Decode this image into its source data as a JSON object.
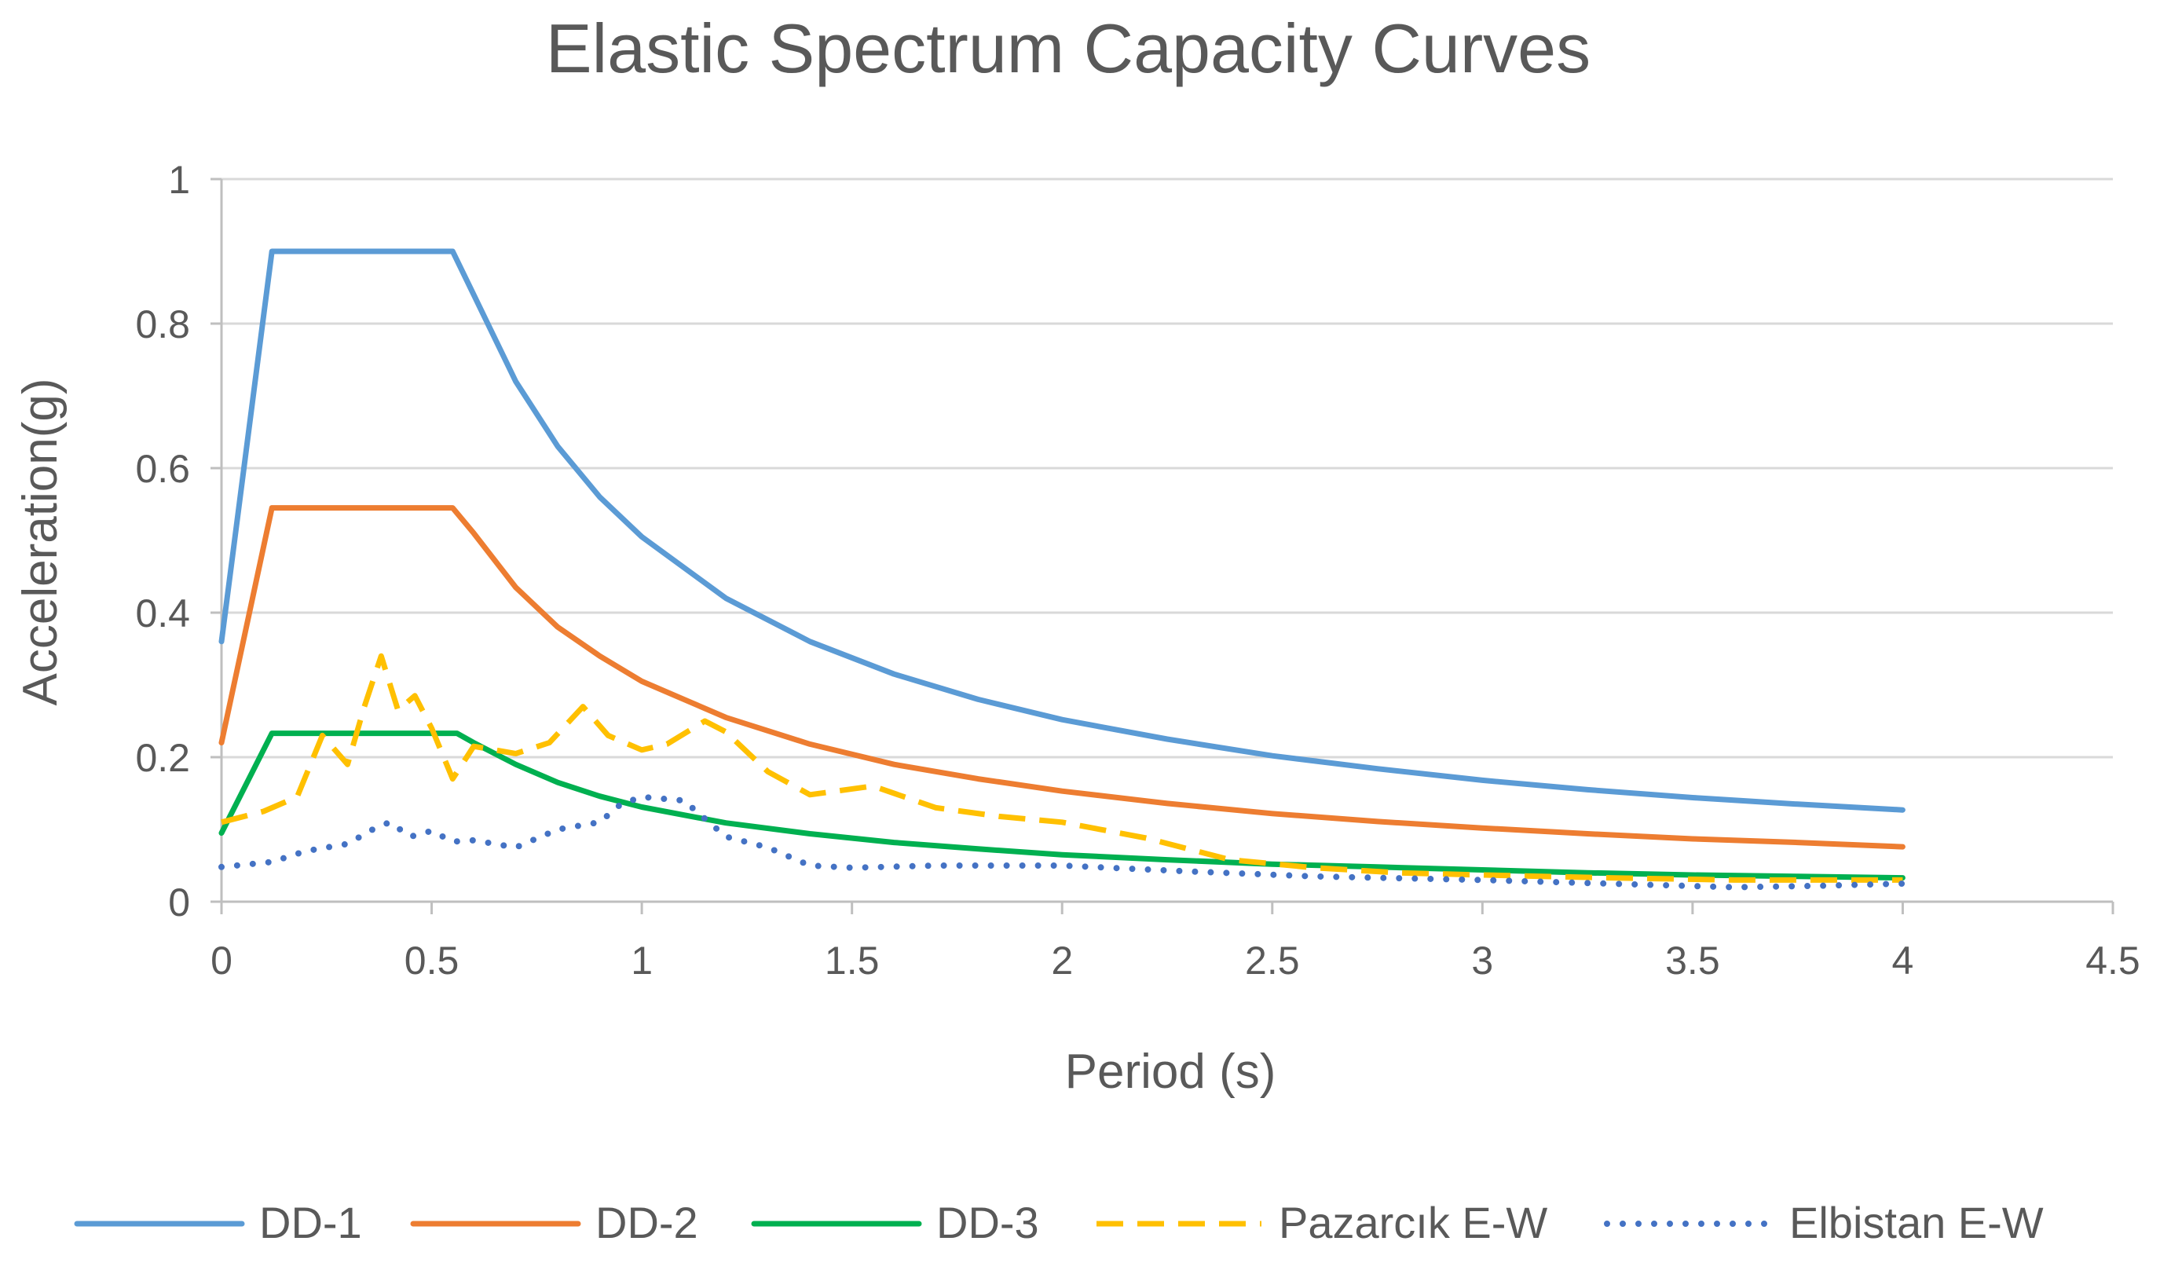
{
  "chart_data": {
    "type": "line",
    "title": "Elastic Spectrum Capacity Curves",
    "xlabel": "Period (s)",
    "ylabel": "Acceleration(g)",
    "xlim": [
      0,
      4.5
    ],
    "ylim": [
      0,
      1
    ],
    "x_ticks": [
      "0",
      "0.5",
      "1",
      "1.5",
      "2",
      "2.5",
      "3",
      "3.5",
      "4",
      "4.5"
    ],
    "y_ticks": [
      "0",
      "0.2",
      "0.4",
      "0.6",
      "0.8",
      "1"
    ],
    "grid": true,
    "legend_position": "bottom",
    "series": [
      {
        "name": "DD-1",
        "color": "#5B9BD5",
        "style": "solid",
        "points": [
          [
            0,
            0.36
          ],
          [
            0.12,
            0.9
          ],
          [
            0.55,
            0.9
          ],
          [
            0.6,
            0.84
          ],
          [
            0.7,
            0.72
          ],
          [
            0.8,
            0.63
          ],
          [
            0.9,
            0.56
          ],
          [
            1,
            0.505
          ],
          [
            1.2,
            0.42
          ],
          [
            1.4,
            0.36
          ],
          [
            1.6,
            0.315
          ],
          [
            1.8,
            0.28
          ],
          [
            2,
            0.252
          ],
          [
            2.25,
            0.225
          ],
          [
            2.5,
            0.202
          ],
          [
            2.75,
            0.184
          ],
          [
            3,
            0.168
          ],
          [
            3.25,
            0.155
          ],
          [
            3.5,
            0.144
          ],
          [
            3.75,
            0.135
          ],
          [
            4,
            0.127
          ]
        ]
      },
      {
        "name": "DD-2",
        "color": "#ED7D31",
        "style": "solid",
        "points": [
          [
            0,
            0.22
          ],
          [
            0.12,
            0.545
          ],
          [
            0.55,
            0.545
          ],
          [
            0.6,
            0.51
          ],
          [
            0.7,
            0.435
          ],
          [
            0.8,
            0.38
          ],
          [
            0.9,
            0.34
          ],
          [
            1,
            0.305
          ],
          [
            1.2,
            0.255
          ],
          [
            1.4,
            0.218
          ],
          [
            1.6,
            0.19
          ],
          [
            1.8,
            0.17
          ],
          [
            2,
            0.153
          ],
          [
            2.25,
            0.136
          ],
          [
            2.5,
            0.122
          ],
          [
            2.75,
            0.111
          ],
          [
            3,
            0.102
          ],
          [
            3.25,
            0.094
          ],
          [
            3.5,
            0.087
          ],
          [
            3.75,
            0.082
          ],
          [
            4,
            0.076
          ]
        ]
      },
      {
        "name": "DD-3",
        "color": "#00B050",
        "style": "solid",
        "points": [
          [
            0,
            0.095
          ],
          [
            0.12,
            0.233
          ],
          [
            0.56,
            0.233
          ],
          [
            0.6,
            0.22
          ],
          [
            0.7,
            0.19
          ],
          [
            0.8,
            0.165
          ],
          [
            0.9,
            0.146
          ],
          [
            1,
            0.131
          ],
          [
            1.2,
            0.109
          ],
          [
            1.4,
            0.094
          ],
          [
            1.6,
            0.082
          ],
          [
            1.8,
            0.073
          ],
          [
            2,
            0.065
          ],
          [
            2.25,
            0.058
          ],
          [
            2.5,
            0.052
          ],
          [
            2.75,
            0.048
          ],
          [
            3,
            0.044
          ],
          [
            3.25,
            0.04
          ],
          [
            3.5,
            0.037
          ],
          [
            3.75,
            0.035
          ],
          [
            4,
            0.033
          ]
        ]
      },
      {
        "name": "Pazarcık E-W",
        "color": "#FFC000",
        "style": "dashed",
        "points": [
          [
            0,
            0.11
          ],
          [
            0.1,
            0.125
          ],
          [
            0.18,
            0.145
          ],
          [
            0.24,
            0.23
          ],
          [
            0.3,
            0.19
          ],
          [
            0.34,
            0.27
          ],
          [
            0.38,
            0.34
          ],
          [
            0.42,
            0.265
          ],
          [
            0.46,
            0.285
          ],
          [
            0.5,
            0.24
          ],
          [
            0.55,
            0.17
          ],
          [
            0.6,
            0.215
          ],
          [
            0.7,
            0.205
          ],
          [
            0.78,
            0.22
          ],
          [
            0.86,
            0.27
          ],
          [
            0.92,
            0.23
          ],
          [
            1,
            0.21
          ],
          [
            1.06,
            0.218
          ],
          [
            1.15,
            0.25
          ],
          [
            1.2,
            0.235
          ],
          [
            1.3,
            0.18
          ],
          [
            1.4,
            0.148
          ],
          [
            1.55,
            0.16
          ],
          [
            1.7,
            0.13
          ],
          [
            1.85,
            0.118
          ],
          [
            2,
            0.11
          ],
          [
            2.2,
            0.088
          ],
          [
            2.4,
            0.058
          ],
          [
            2.6,
            0.047
          ],
          [
            2.8,
            0.04
          ],
          [
            3,
            0.037
          ],
          [
            3.3,
            0.033
          ],
          [
            3.6,
            0.03
          ],
          [
            4,
            0.03
          ]
        ]
      },
      {
        "name": "Elbistan E-W",
        "color": "#4472C4",
        "style": "dotted",
        "points": [
          [
            0,
            0.048
          ],
          [
            0.12,
            0.055
          ],
          [
            0.2,
            0.07
          ],
          [
            0.3,
            0.08
          ],
          [
            0.36,
            0.1
          ],
          [
            0.4,
            0.11
          ],
          [
            0.45,
            0.09
          ],
          [
            0.5,
            0.098
          ],
          [
            0.55,
            0.083
          ],
          [
            0.6,
            0.085
          ],
          [
            0.7,
            0.075
          ],
          [
            0.8,
            0.1
          ],
          [
            0.9,
            0.11
          ],
          [
            0.95,
            0.135
          ],
          [
            1,
            0.145
          ],
          [
            1.1,
            0.14
          ],
          [
            1.2,
            0.09
          ],
          [
            1.3,
            0.075
          ],
          [
            1.4,
            0.05
          ],
          [
            1.5,
            0.047
          ],
          [
            1.7,
            0.05
          ],
          [
            2,
            0.05
          ],
          [
            2.3,
            0.042
          ],
          [
            2.6,
            0.035
          ],
          [
            3,
            0.03
          ],
          [
            3.3,
            0.025
          ],
          [
            3.6,
            0.02
          ],
          [
            3.8,
            0.022
          ],
          [
            4,
            0.025
          ]
        ]
      }
    ]
  }
}
